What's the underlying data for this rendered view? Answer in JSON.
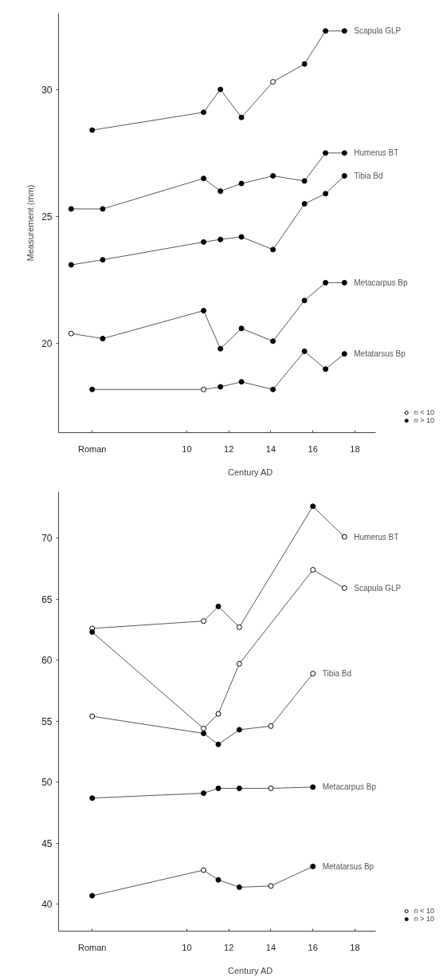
{
  "chart_data": [
    {
      "type": "line",
      "ylabel": "Measurement (mm)",
      "xlabel": "Century AD",
      "xlim": [
        3.9,
        19.0
      ],
      "ylim": [
        16.5,
        33.0
      ],
      "xticks": [
        {
          "value": 5.5,
          "label": "Roman"
        },
        10,
        12,
        14,
        16,
        18
      ],
      "yticks": [
        20,
        25,
        30
      ],
      "grid": false,
      "legend": "bottom right",
      "line_style": "solid",
      "series": [
        {
          "name": "Scapula GLP",
          "marker": "none",
          "color": "#555555",
          "x": [
            5.5,
            10.8,
            11.6,
            12.6,
            14.1,
            15.6,
            16.6,
            17.5
          ],
          "values": [
            28.4,
            29.1,
            30.0,
            28.9,
            30.3,
            31.0,
            32.3,
            32.3
          ]
        },
        {
          "name": "Humerus BT",
          "marker": "none",
          "color": "#555555",
          "x": [
            4.5,
            6.0,
            10.8,
            11.6,
            12.6,
            14.1,
            15.6,
            16.6,
            17.5
          ],
          "values": [
            25.3,
            25.3,
            26.5,
            26.0,
            26.3,
            26.6,
            26.4,
            27.5,
            27.5
          ]
        },
        {
          "name": "Tibia Bd",
          "marker": "none",
          "color": "#555555",
          "x": [
            4.5,
            6.0,
            10.8,
            11.6,
            12.6,
            14.1,
            15.6,
            16.6,
            17.5
          ],
          "values": [
            23.1,
            23.3,
            24.0,
            24.1,
            24.2,
            23.7,
            25.5,
            25.9,
            26.6
          ]
        },
        {
          "name": "Metacarpus Bp",
          "marker": "none",
          "color": "#555555",
          "x": [
            4.5,
            6.0,
            10.8,
            11.6,
            12.6,
            14.1,
            15.6,
            16.6,
            17.5
          ],
          "values": [
            20.4,
            20.2,
            21.3,
            19.8,
            20.6,
            20.1,
            21.7,
            22.4,
            22.4
          ]
        },
        {
          "name": "Metatarsus Bp",
          "marker": "none",
          "color": "#555555",
          "x": [
            5.5,
            10.8,
            11.6,
            12.6,
            14.1,
            15.6,
            16.6,
            17.5
          ],
          "values": [
            18.2,
            18.2,
            18.3,
            18.5,
            18.2,
            19.7,
            19.0,
            19.6
          ]
        },
        {
          "name": "n < 10",
          "type": "scatter",
          "marker": "circle",
          "color": "#ffffff",
          "x": [
            14.1,
            4.5,
            10.8
          ],
          "values": [
            30.3,
            20.4,
            18.2
          ]
        },
        {
          "name": "n > 10",
          "type": "scatter",
          "marker": "circle",
          "color": "#000000",
          "x": [
            5.5,
            10.8,
            11.6,
            12.6,
            15.6,
            16.6,
            17.5,
            4.5,
            6.0,
            10.8,
            11.6,
            12.6,
            14.1,
            15.6,
            16.6,
            17.5,
            4.5,
            6.0,
            10.8,
            11.6,
            12.6,
            14.1,
            15.6,
            16.6,
            17.5,
            6.0,
            10.8,
            11.6,
            12.6,
            14.1,
            15.6,
            16.6,
            17.5,
            5.5,
            11.6,
            12.6,
            14.1,
            15.6,
            16.6,
            17.5
          ],
          "values": [
            28.4,
            29.1,
            30.0,
            28.9,
            31.0,
            32.3,
            32.3,
            25.3,
            25.3,
            26.5,
            26.0,
            26.3,
            26.6,
            26.4,
            27.5,
            27.5,
            23.1,
            23.3,
            24.0,
            24.1,
            24.2,
            23.7,
            25.5,
            25.9,
            26.6,
            20.2,
            21.3,
            19.8,
            20.6,
            20.1,
            21.7,
            22.4,
            22.4,
            18.2,
            18.3,
            18.5,
            18.2,
            19.7,
            19.0,
            19.6
          ]
        }
      ]
    },
    {
      "type": "line",
      "xlabel": "Century AD",
      "xlim": [
        3.9,
        19.0
      ],
      "ylim": [
        37.8,
        73.8
      ],
      "xticks": [
        {
          "value": 5.5,
          "label": "Roman"
        },
        10,
        12,
        14,
        16,
        18
      ],
      "yticks": [
        40,
        45,
        50,
        55,
        60,
        65,
        70
      ],
      "grid": false,
      "legend": "bottom right",
      "line_style": "solid",
      "series": [
        {
          "name": "Humerus BT",
          "marker": "none",
          "color": "#555555",
          "x": [
            5.5,
            10.8,
            11.5,
            12.5,
            16.0,
            17.5
          ],
          "values": [
            62.6,
            63.2,
            64.4,
            62.7,
            72.6,
            70.1
          ]
        },
        {
          "name": "Scapula GLP",
          "marker": "none",
          "color": "#555555",
          "x": [
            5.5,
            10.8,
            11.5,
            12.5,
            16.0,
            17.5
          ],
          "values": [
            62.3,
            54.4,
            55.6,
            59.7,
            67.4,
            65.9
          ]
        },
        {
          "name": "Tibia Bd",
          "marker": "none",
          "color": "#555555",
          "x": [
            5.5,
            10.8,
            11.5,
            12.5,
            14.0,
            16.0
          ],
          "values": [
            55.4,
            54.0,
            53.1,
            54.3,
            54.6,
            58.9
          ]
        },
        {
          "name": "Metacarpus Bp",
          "marker": "none",
          "color": "#555555",
          "x": [
            5.5,
            10.8,
            11.5,
            12.5,
            14.0,
            16.0
          ],
          "values": [
            48.7,
            49.1,
            49.5,
            49.5,
            49.5,
            49.6
          ]
        },
        {
          "name": "Metatarsus Bp",
          "marker": "none",
          "color": "#555555",
          "x": [
            5.5,
            10.8,
            11.5,
            12.5,
            14.0,
            16.0
          ],
          "values": [
            40.7,
            42.8,
            42.0,
            41.4,
            41.5,
            43.1
          ]
        },
        {
          "name": "n < 10",
          "type": "scatter",
          "marker": "circle",
          "color": "#ffffff",
          "x": [
            5.5,
            10.8,
            12.5,
            17.5,
            10.8,
            11.5,
            12.5,
            16.0,
            17.5,
            5.5,
            14.0,
            16.0,
            14.0,
            10.8,
            14.0
          ],
          "values": [
            62.6,
            63.2,
            62.7,
            70.1,
            54.4,
            55.6,
            59.7,
            67.4,
            65.9,
            55.4,
            54.6,
            58.9,
            49.5,
            42.8,
            41.5
          ]
        },
        {
          "name": "n > 10",
          "type": "scatter",
          "marker": "circle",
          "color": "#000000",
          "x": [
            11.5,
            16.0,
            5.5,
            10.8,
            11.5,
            12.5,
            5.5,
            10.8,
            11.5,
            12.5,
            16.0,
            5.5,
            11.5,
            12.5,
            16.0
          ],
          "values": [
            64.4,
            72.6,
            62.3,
            54.0,
            53.1,
            54.3,
            48.7,
            49.1,
            49.5,
            49.5,
            49.6,
            40.7,
            42.0,
            41.4,
            43.1
          ]
        }
      ]
    }
  ]
}
